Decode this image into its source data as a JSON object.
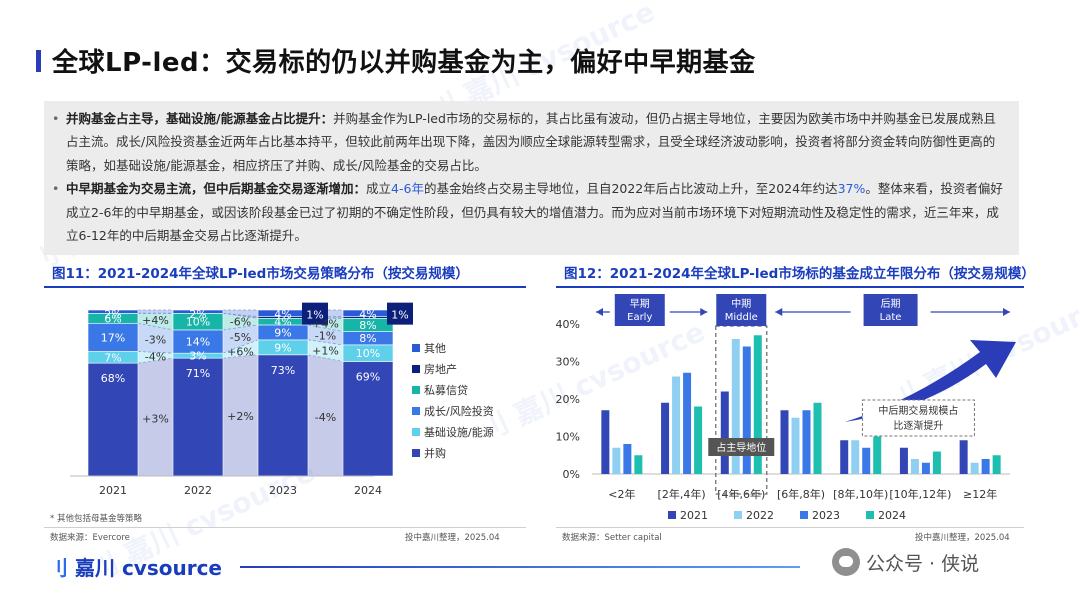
{
  "page": {
    "title": "全球LP-led：交易标的仍以并购基金为主，偏好中早期基金"
  },
  "summary": {
    "bullets": [
      {
        "lead": "并购基金占主导，基础设施/能源基金占比提升：",
        "text": "并购基金作为LP-led市场的交易标的，其占比虽有波动，但仍占据主导地位，主要因为欧美市场中并购基金已发展成熟且占主流。成长/风险投资基金近两年占比基本持平，但较此前两年出现下降，盖因为顺应全球能源转型需求，且受全球经济波动影响，投资者将部分资金转向防御性更高的策略，如基础设施/能源基金，相应挤压了并购、成长/风险基金的交易占比。"
      },
      {
        "lead": "中早期基金为交易主流，但中后期基金交易逐渐增加：",
        "text_1": "成立",
        "highlight_1": "4-6年",
        "text_2": "的基金始终占交易主导地位，且自2022年后占比波动上升，至2024年约达",
        "highlight_2": "37%",
        "text_3": "。整体来看，投资者偏好成立2-6年的中早期基金，或因该阶段基金已过了初期的不确定性阶段，但仍具有较大的增值潜力。而为应对当前市场环境下对短期流动性及稳定性的需求，近三年来，成立6-12年的中后期基金交易占比逐渐提升。"
      }
    ]
  },
  "chart11": {
    "title": "图11：2021-2024年全球LP-led市场交易策略分布（按交易规模）",
    "footnote": "* 其他包括母基金等策略",
    "source": "数据来源：Evercore",
    "credit": "投中嘉川整理，2025.04"
  },
  "chart12": {
    "title": "图12：2021-2024年全球LP-led市场标的基金成立年限分布（按交易规模）",
    "source": "数据来源：Setter capital",
    "credit": "投中嘉川整理，2025.04"
  },
  "brand": {
    "name": "嘉川",
    "suffix": "cvsource",
    "mark": "刂"
  },
  "wechat": {
    "label": "公众号 · 侠说"
  },
  "watermark": "刂 嘉川 cvsource",
  "chart_data": [
    {
      "type": "bar",
      "stacked": true,
      "normalized": true,
      "categories": [
        "2021",
        "2022",
        "2023",
        "2024"
      ],
      "series": [
        {
          "name": "并购",
          "color": "#3346b5",
          "values": [
            68,
            71,
            73,
            69
          ],
          "labels": [
            "68%",
            "71%",
            "73%",
            "69%"
          ]
        },
        {
          "name": "基础设施/能源",
          "color": "#5ed0ea",
          "values": [
            7,
            3,
            9,
            10
          ],
          "labels": [
            "7%",
            "3%",
            "9%",
            "10%"
          ]
        },
        {
          "name": "成长/风险投资",
          "color": "#3b78e7",
          "values": [
            17,
            14,
            9,
            8
          ],
          "labels": [
            "17%",
            "14%",
            "9%",
            "8%"
          ]
        },
        {
          "name": "私募信贷",
          "color": "#16b5a8",
          "values": [
            6,
            10,
            4,
            8
          ],
          "labels": [
            "6%",
            "10%",
            "4%",
            "8%"
          ]
        },
        {
          "name": "房地产",
          "color": "#0c1f7a",
          "values": [
            0,
            0,
            1,
            1
          ],
          "labels": [
            "",
            "",
            "1%",
            "1%"
          ],
          "callout": true
        },
        {
          "name": "其他",
          "color": "#2a5bd7",
          "values": [
            2,
            2,
            4,
            4
          ],
          "labels": [
            "2%",
            "2%",
            "4%",
            "4%"
          ]
        }
      ],
      "changes": [
        {
          "series": "并购",
          "labels": [
            "+3%",
            "+2%",
            "-4%"
          ]
        },
        {
          "series": "基础设施/能源",
          "labels": [
            "-4%",
            "+6%",
            "+1%"
          ]
        },
        {
          "series": "成长/风险投资",
          "labels": [
            "-3%",
            "-5%",
            "-1%"
          ]
        },
        {
          "series": "私募信贷",
          "labels": [
            "+4%",
            "-6%",
            "+4%"
          ]
        }
      ],
      "legend_position": "right",
      "legend_order": [
        "其他",
        "房地产",
        "私募信贷",
        "成长/风险投资",
        "基础设施/能源",
        "并购"
      ]
    },
    {
      "type": "bar",
      "categories": [
        "<2年",
        "[2年,4年)",
        "[4年,6年)",
        "[6年,8年)",
        "[8年,10年)",
        "[10年,12年)",
        "≥12年"
      ],
      "series": [
        {
          "name": "2021",
          "color": "#3346b5",
          "values": [
            17,
            19,
            22,
            17,
            9,
            7,
            9
          ]
        },
        {
          "name": "2022",
          "color": "#8fd0f2",
          "values": [
            7,
            26,
            36,
            15,
            9,
            4,
            3
          ]
        },
        {
          "name": "2023",
          "color": "#3b78e7",
          "values": [
            8,
            27,
            34,
            17,
            7,
            3,
            4
          ]
        },
        {
          "name": "2024",
          "color": "#1fbfb0",
          "values": [
            5,
            18,
            37,
            19,
            10,
            6,
            5
          ]
        }
      ],
      "ylim": [
        0,
        40
      ],
      "yticks": [
        "0%",
        "10%",
        "20%",
        "30%",
        "40%"
      ],
      "stages": [
        {
          "zh": "早期",
          "en": "Early"
        },
        {
          "zh": "中期",
          "en": "Middle"
        },
        {
          "zh": "后期",
          "en": "Late"
        }
      ],
      "annotations": [
        "占主导地位",
        "中后期交易规模占比逐渐提升"
      ],
      "legend_position": "bottom"
    }
  ]
}
